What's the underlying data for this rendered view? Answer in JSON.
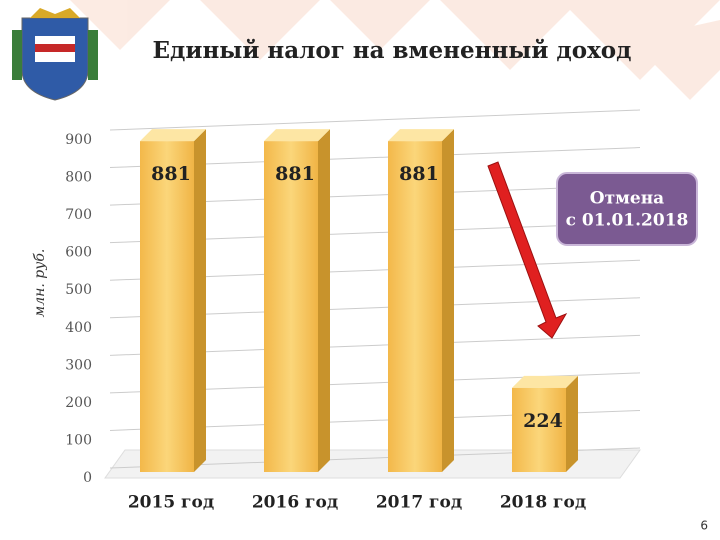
{
  "chart_data": {
    "type": "bar3d",
    "title": "Единый налог на вмененный доход",
    "y_label": "млн. руб.",
    "categories": [
      "2015 год",
      "2016 год",
      "2017 год",
      "2018 год"
    ],
    "values": [
      881,
      881,
      881,
      224
    ],
    "color": "#f6c65a",
    "ylim": [
      0,
      900
    ],
    "yticks": [
      0,
      100,
      200,
      300,
      400,
      500,
      600,
      700,
      800,
      900
    ],
    "grid": true,
    "annotation": [
      "Отмена",
      "с 01.01.2018"
    ]
  },
  "page_number": "6"
}
